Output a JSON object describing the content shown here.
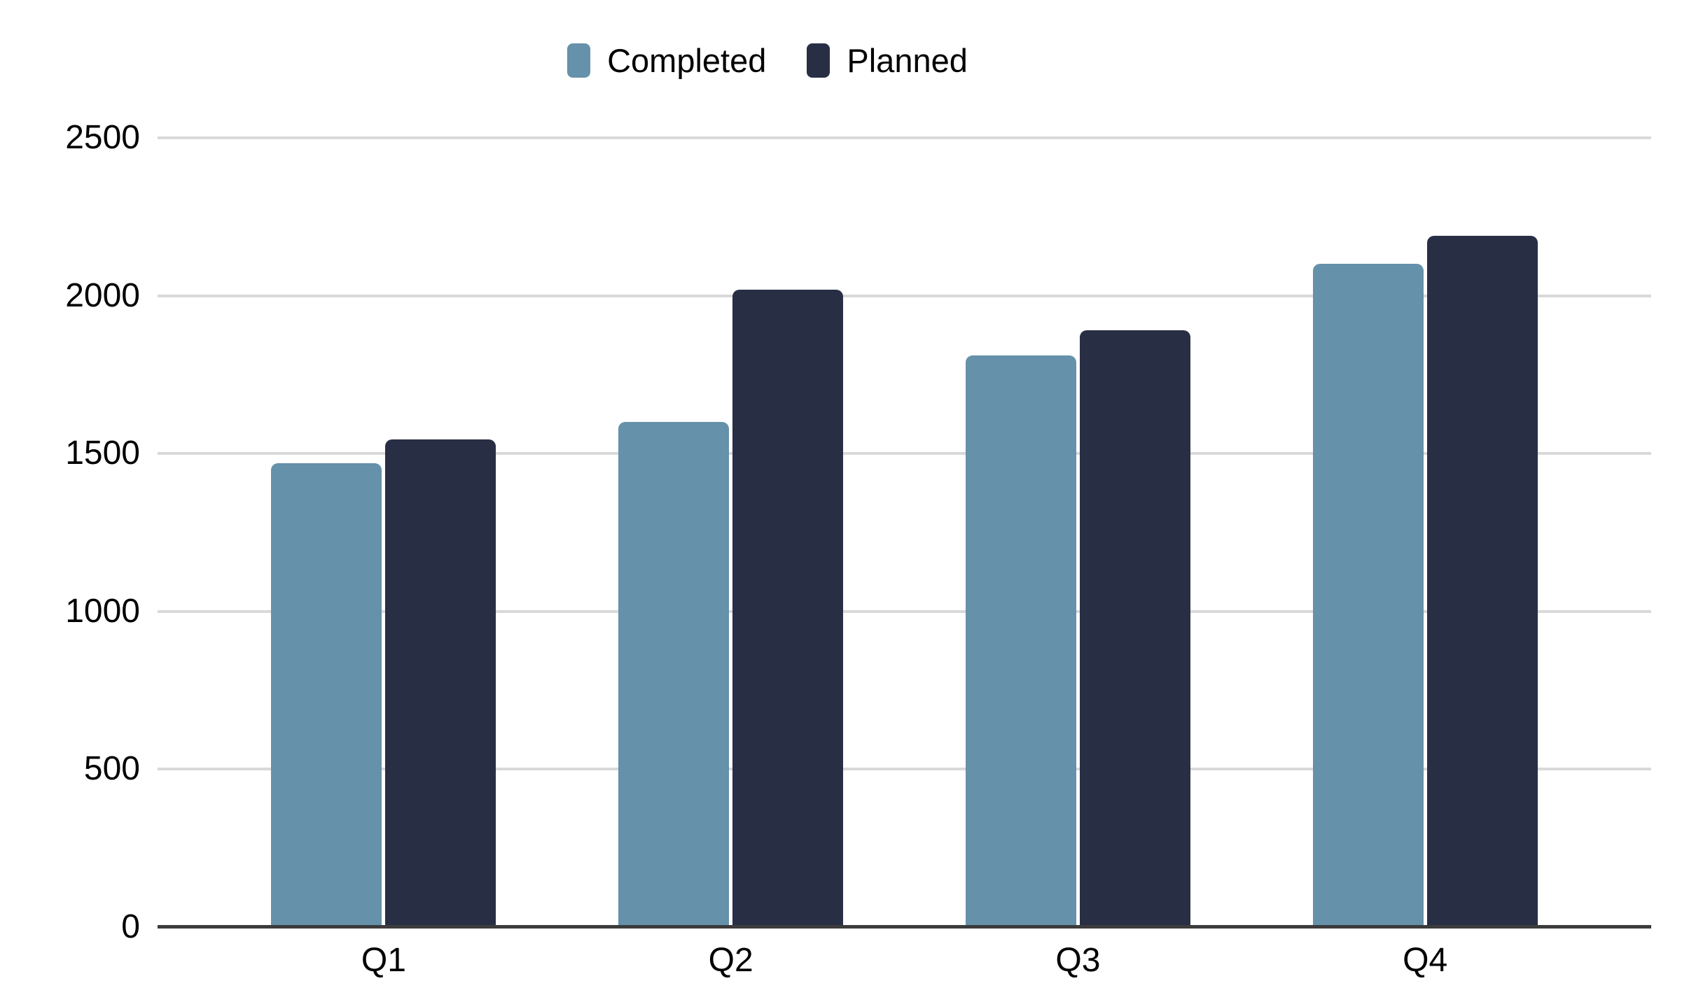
{
  "chart_data": {
    "type": "bar",
    "title": "",
    "xlabel": "",
    "ylabel": "",
    "categories": [
      "Q1",
      "Q2",
      "Q3",
      "Q4"
    ],
    "series": [
      {
        "name": "Completed",
        "color": "#6591AA",
        "values": [
          1470,
          1600,
          1810,
          2100
        ]
      },
      {
        "name": "Planned",
        "color": "#282F45",
        "values": [
          1545,
          2020,
          1890,
          2190
        ]
      }
    ],
    "ylim": [
      0,
      2500
    ],
    "yticks": [
      0,
      500,
      1000,
      1500,
      2000,
      2500
    ],
    "grid": "horizontal",
    "legend_position": "top-center",
    "colors": {
      "background": "#FFFFFF",
      "gridline": "#D9D9D9",
      "axis_line": "#3C3C3C",
      "text": "#000000"
    }
  }
}
